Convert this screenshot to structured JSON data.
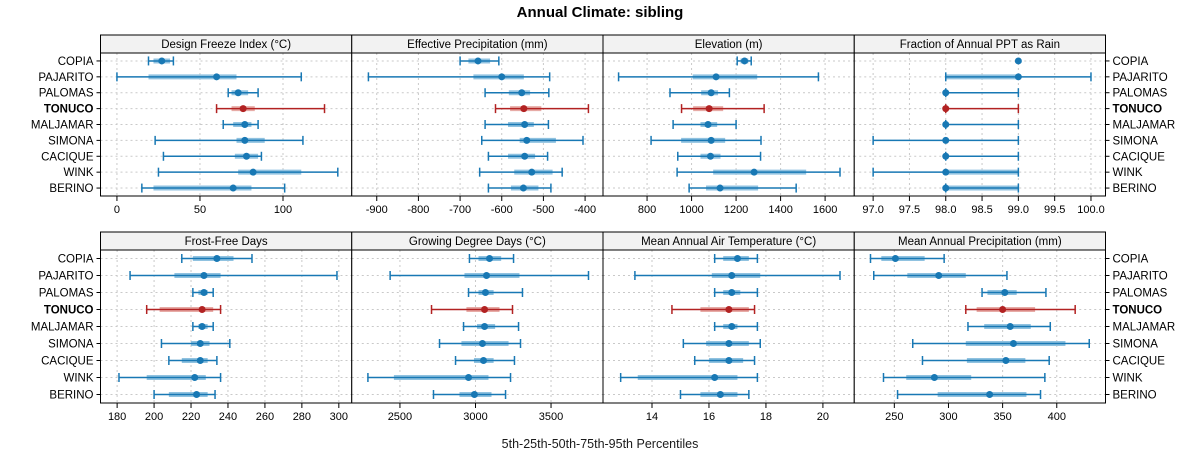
{
  "title": "Annual Climate: sibling",
  "caption": "5th-25th-50th-75th-95th Percentiles",
  "colors": {
    "accent_blue": "#1878b4",
    "accent_blue_band": "#90c2e0",
    "accent_red": "#b22222",
    "accent_red_band": "#e7aba6",
    "header_bg": "#f2f2f2",
    "panel_border": "#000000",
    "grid": "#c9c9c9",
    "text": "#000000"
  },
  "chart_data": {
    "type": "dotplot-interval",
    "orientation": "horizontal",
    "percentile_levels": [
      5,
      25,
      50,
      75,
      95
    ],
    "stations": [
      "COPIA",
      "PAJARITO",
      "PALOMAS",
      "TONUCO",
      "MALJAMAR",
      "SIMONA",
      "CACIQUE",
      "WINK",
      "BERINO"
    ],
    "highlight_station": "TONUCO",
    "grid": "dashed",
    "layout": "2 rows x 4 cols trellis",
    "panels": [
      {
        "title": "Design Freeze Index (°C)",
        "row": 0,
        "col": 0,
        "xlim": [
          -9.9,
          141.4
        ],
        "ticks": [
          0,
          50,
          100
        ],
        "tick_labels": [
          "0",
          "50",
          "100"
        ],
        "values": [
          [
            19,
            22,
            27,
            32,
            34
          ],
          [
            0,
            19,
            60,
            72,
            111
          ],
          [
            67,
            69,
            73,
            79,
            85
          ],
          [
            60,
            69,
            76,
            83,
            125
          ],
          [
            64,
            70,
            77,
            81,
            85
          ],
          [
            23,
            72,
            77,
            89,
            112
          ],
          [
            28,
            71,
            78,
            85,
            87
          ],
          [
            25,
            73,
            82,
            111,
            133
          ],
          [
            15,
            22,
            70,
            81,
            101
          ]
        ]
      },
      {
        "title": "Effective Precipitation (mm)",
        "row": 0,
        "col": 1,
        "xlim": [
          -960,
          -357
        ],
        "ticks": [
          -900,
          -800,
          -700,
          -600,
          -500,
          -400
        ],
        "tick_labels": [
          "-900",
          "-800",
          "-700",
          "-600",
          "-500",
          "-400"
        ],
        "values": [
          [
            -700,
            -680,
            -657,
            -628,
            -607
          ],
          [
            -920,
            -668,
            -600,
            -547,
            -485
          ],
          [
            -640,
            -583,
            -552,
            -532,
            -487
          ],
          [
            -615,
            -580,
            -547,
            -505,
            -392
          ],
          [
            -640,
            -585,
            -545,
            -523,
            -488
          ],
          [
            -648,
            -557,
            -540,
            -470,
            -405
          ],
          [
            -632,
            -585,
            -545,
            -520,
            -490
          ],
          [
            -653,
            -570,
            -528,
            -478,
            -455
          ],
          [
            -632,
            -578,
            -548,
            -512,
            -482
          ]
        ]
      },
      {
        "title": "Elevation (m)",
        "row": 0,
        "col": 2,
        "xlim": [
          602,
          1731
        ],
        "ticks": [
          800,
          1000,
          1200,
          1400,
          1600
        ],
        "tick_labels": [
          "800",
          "1000",
          "1200",
          "1400",
          "1600"
        ],
        "values": [
          [
            1205,
            1220,
            1238,
            1255,
            1268
          ],
          [
            672,
            1005,
            1110,
            1295,
            1570
          ],
          [
            903,
            1043,
            1088,
            1119,
            1170
          ],
          [
            955,
            1007,
            1079,
            1142,
            1326
          ],
          [
            917,
            1040,
            1074,
            1115,
            1200
          ],
          [
            818,
            953,
            1088,
            1151,
            1312
          ],
          [
            938,
            1040,
            1085,
            1130,
            1310
          ],
          [
            935,
            1097,
            1281,
            1515,
            1667
          ],
          [
            989,
            1065,
            1128,
            1299,
            1470
          ]
        ]
      },
      {
        "title": "Fraction of Annual PPT as Rain",
        "row": 0,
        "col": 3,
        "xlim": [
          96.74,
          100.2
        ],
        "ticks": [
          97.0,
          97.5,
          98.0,
          98.5,
          99.0,
          99.5,
          100.0
        ],
        "tick_labels": [
          "97.0",
          "97.5",
          "98.0",
          "98.5",
          "99.0",
          "99.5",
          "100.0"
        ],
        "values": [
          [
            99,
            99,
            99,
            99,
            99
          ],
          [
            98,
            98,
            99,
            99,
            100
          ],
          [
            98,
            98,
            98,
            98,
            99
          ],
          [
            98,
            98,
            98,
            98,
            99
          ],
          [
            98,
            98,
            98,
            98,
            99
          ],
          [
            97,
            98,
            98,
            98,
            99
          ],
          [
            98,
            98,
            98,
            98,
            99
          ],
          [
            97,
            98,
            98,
            99,
            99
          ],
          [
            98,
            98,
            98,
            99,
            99
          ]
        ]
      },
      {
        "title": "Frost-Free Days",
        "row": 1,
        "col": 0,
        "xlim": [
          171,
          307
        ],
        "ticks": [
          180,
          200,
          220,
          240,
          260,
          280,
          300
        ],
        "tick_labels": [
          "180",
          "200",
          "220",
          "240",
          "260",
          "280",
          "300"
        ],
        "values": [
          [
            215,
            221,
            234,
            243,
            253
          ],
          [
            187,
            211,
            227,
            236,
            299
          ],
          [
            221,
            224,
            227,
            229,
            232
          ],
          [
            196,
            203,
            226,
            232,
            236
          ],
          [
            221,
            224,
            226,
            229,
            232
          ],
          [
            204,
            220,
            225,
            230,
            241
          ],
          [
            208,
            215,
            225,
            229,
            234
          ],
          [
            181,
            196,
            222,
            228,
            236
          ],
          [
            200,
            208,
            223,
            229,
            233
          ]
        ]
      },
      {
        "title": "Growing Degree Days (°C)",
        "row": 1,
        "col": 1,
        "xlim": [
          2181,
          3844
        ],
        "ticks": [
          2500,
          3000,
          3500
        ],
        "tick_labels": [
          "2500",
          "3000",
          "3500"
        ],
        "values": [
          [
            2960,
            3020,
            3093,
            3170,
            3252
          ],
          [
            2435,
            2927,
            3073,
            3291,
            3748
          ],
          [
            2954,
            3020,
            3066,
            3120,
            3311
          ],
          [
            2709,
            2940,
            3060,
            3159,
            3245
          ],
          [
            2921,
            3010,
            3060,
            3130,
            3285
          ],
          [
            2762,
            2907,
            3046,
            3219,
            3298
          ],
          [
            2868,
            2990,
            3053,
            3120,
            3258
          ],
          [
            2288,
            2460,
            2954,
            3086,
            3232
          ],
          [
            2722,
            2894,
            2993,
            3106,
            3199
          ]
        ]
      },
      {
        "title": "Mean Annual Air Temperature (°C)",
        "row": 1,
        "col": 2,
        "xlim": [
          12.28,
          21.1
        ],
        "ticks": [
          14,
          16,
          18,
          20
        ],
        "tick_labels": [
          "14",
          "16",
          "18",
          "20"
        ],
        "values": [
          [
            16.2,
            16.5,
            17.0,
            17.4,
            17.7
          ],
          [
            13.4,
            16.1,
            16.8,
            17.8,
            20.6
          ],
          [
            16.2,
            16.5,
            16.8,
            17.1,
            17.7
          ],
          [
            14.7,
            15.7,
            16.7,
            17.4,
            17.6
          ],
          [
            16.2,
            16.5,
            16.8,
            17.0,
            17.7
          ],
          [
            15.1,
            15.9,
            16.7,
            17.4,
            17.8
          ],
          [
            15.5,
            16.0,
            16.7,
            17.2,
            17.6
          ],
          [
            12.9,
            13.5,
            16.2,
            17.0,
            17.7
          ],
          [
            15.0,
            15.7,
            16.4,
            17.0,
            17.4
          ]
        ]
      },
      {
        "title": "Mean Annual Precipitation (mm)",
        "row": 1,
        "col": 3,
        "xlim": [
          213,
          445
        ],
        "ticks": [
          250,
          300,
          350,
          400
        ],
        "tick_labels": [
          "250",
          "300",
          "350",
          "400"
        ],
        "values": [
          [
            228,
            238,
            251,
            278,
            296
          ],
          [
            231,
            262,
            291,
            316,
            354
          ],
          [
            331,
            336,
            352,
            363,
            390
          ],
          [
            316,
            326,
            350,
            380,
            417
          ],
          [
            318,
            333,
            357,
            376,
            394
          ],
          [
            267,
            316,
            360,
            408,
            430
          ],
          [
            276,
            317,
            353,
            371,
            393
          ],
          [
            240,
            261,
            287,
            321,
            389
          ],
          [
            253,
            290,
            338,
            372,
            385
          ]
        ]
      }
    ]
  }
}
